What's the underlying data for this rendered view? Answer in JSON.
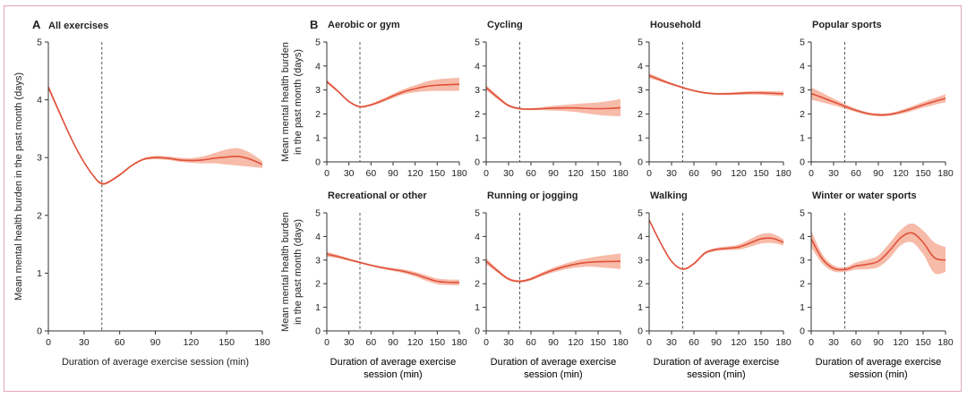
{
  "colors": {
    "band": "#f4a48c",
    "curve": "#e0503a",
    "frame": "#e3a6b8",
    "reference_line": "#555555"
  },
  "chart_data": [
    {
      "id": "all",
      "panel_label": "A",
      "type": "line",
      "title": "All exercises",
      "xlabel": "Duration of average exercise session (min)",
      "ylabel": "Mean mental health burden in the past month (days)",
      "xlim": [
        0,
        180
      ],
      "ylim": [
        0,
        5
      ],
      "xticks": [
        0,
        30,
        60,
        90,
        120,
        150,
        180
      ],
      "yticks": [
        0,
        1,
        2,
        3,
        4,
        5
      ],
      "reference_x": 45,
      "x": [
        0,
        10,
        20,
        30,
        40,
        45,
        50,
        60,
        70,
        80,
        90,
        100,
        110,
        120,
        130,
        140,
        150,
        160,
        170,
        180
      ],
      "y": [
        4.22,
        3.75,
        3.3,
        2.92,
        2.63,
        2.55,
        2.57,
        2.7,
        2.86,
        2.97,
        3.0,
        2.99,
        2.96,
        2.95,
        2.96,
        2.99,
        3.01,
        3.02,
        2.97,
        2.88
      ],
      "lower": [
        4.18,
        3.72,
        3.28,
        2.9,
        2.61,
        2.53,
        2.55,
        2.68,
        2.84,
        2.95,
        2.97,
        2.96,
        2.93,
        2.91,
        2.9,
        2.9,
        2.88,
        2.86,
        2.84,
        2.82
      ],
      "upper": [
        4.26,
        3.78,
        3.32,
        2.94,
        2.65,
        2.57,
        2.59,
        2.72,
        2.88,
        2.99,
        3.03,
        3.02,
        3.0,
        2.99,
        3.02,
        3.08,
        3.14,
        3.16,
        3.08,
        2.94
      ]
    },
    {
      "id": "aerobic",
      "panel_label": "B",
      "type": "line",
      "title": "Aerobic or gym",
      "xlim": [
        0,
        180
      ],
      "ylim": [
        0,
        5
      ],
      "xticks": [
        0,
        30,
        60,
        90,
        120,
        150,
        180
      ],
      "yticks": [
        0,
        1,
        2,
        3,
        4,
        5
      ],
      "reference_x": 45,
      "x": [
        0,
        15,
        30,
        45,
        60,
        75,
        90,
        105,
        120,
        135,
        150,
        165,
        180
      ],
      "y": [
        3.35,
        2.95,
        2.52,
        2.3,
        2.38,
        2.55,
        2.75,
        2.93,
        3.05,
        3.15,
        3.2,
        3.22,
        3.24
      ],
      "lower": [
        3.28,
        2.9,
        2.48,
        2.26,
        2.33,
        2.48,
        2.66,
        2.82,
        2.9,
        2.95,
        2.96,
        2.96,
        2.97
      ],
      "upper": [
        3.42,
        3.0,
        2.56,
        2.34,
        2.43,
        2.62,
        2.84,
        3.04,
        3.2,
        3.35,
        3.44,
        3.48,
        3.51
      ]
    },
    {
      "id": "cycling",
      "type": "line",
      "title": "Cycling",
      "xlim": [
        0,
        180
      ],
      "ylim": [
        0,
        5
      ],
      "xticks": [
        0,
        30,
        60,
        90,
        120,
        150,
        180
      ],
      "yticks": [
        0,
        1,
        2,
        3,
        4,
        5
      ],
      "reference_x": 45,
      "x": [
        0,
        15,
        30,
        45,
        60,
        75,
        90,
        105,
        120,
        135,
        150,
        165,
        180
      ],
      "y": [
        3.1,
        2.7,
        2.35,
        2.22,
        2.2,
        2.22,
        2.24,
        2.25,
        2.25,
        2.23,
        2.22,
        2.23,
        2.26
      ],
      "lower": [
        3.0,
        2.62,
        2.3,
        2.18,
        2.16,
        2.16,
        2.14,
        2.12,
        2.08,
        2.02,
        1.96,
        1.92,
        1.9
      ],
      "upper": [
        3.2,
        2.78,
        2.4,
        2.26,
        2.24,
        2.28,
        2.34,
        2.38,
        2.42,
        2.45,
        2.48,
        2.54,
        2.62
      ]
    },
    {
      "id": "household",
      "type": "line",
      "title": "Household",
      "xlim": [
        0,
        180
      ],
      "ylim": [
        0,
        5
      ],
      "xticks": [
        0,
        30,
        60,
        90,
        120,
        150,
        180
      ],
      "yticks": [
        0,
        1,
        2,
        3,
        4,
        5
      ],
      "reference_x": 45,
      "x": [
        0,
        15,
        30,
        45,
        60,
        75,
        90,
        105,
        120,
        135,
        150,
        165,
        180
      ],
      "y": [
        3.6,
        3.42,
        3.25,
        3.1,
        2.97,
        2.88,
        2.84,
        2.84,
        2.86,
        2.88,
        2.88,
        2.86,
        2.84
      ],
      "lower": [
        3.5,
        3.35,
        3.2,
        3.06,
        2.93,
        2.84,
        2.8,
        2.79,
        2.8,
        2.81,
        2.8,
        2.77,
        2.74
      ],
      "upper": [
        3.7,
        3.5,
        3.3,
        3.14,
        3.01,
        2.92,
        2.88,
        2.89,
        2.92,
        2.95,
        2.96,
        2.95,
        2.94
      ]
    },
    {
      "id": "popular",
      "type": "line",
      "title": "Popular sports",
      "xlim": [
        0,
        180
      ],
      "ylim": [
        0,
        5
      ],
      "xticks": [
        0,
        30,
        60,
        90,
        120,
        150,
        180
      ],
      "yticks": [
        0,
        1,
        2,
        3,
        4,
        5
      ],
      "reference_x": 45,
      "x": [
        0,
        15,
        30,
        45,
        60,
        75,
        90,
        105,
        120,
        135,
        150,
        165,
        180
      ],
      "y": [
        2.85,
        2.68,
        2.5,
        2.32,
        2.15,
        2.02,
        1.96,
        1.98,
        2.08,
        2.22,
        2.38,
        2.52,
        2.65
      ],
      "lower": [
        2.6,
        2.48,
        2.36,
        2.22,
        2.08,
        1.96,
        1.9,
        1.92,
        2.0,
        2.12,
        2.26,
        2.38,
        2.48
      ],
      "upper": [
        3.1,
        2.88,
        2.64,
        2.42,
        2.22,
        2.08,
        2.02,
        2.04,
        2.16,
        2.32,
        2.5,
        2.66,
        2.82
      ]
    },
    {
      "id": "recreational",
      "type": "line",
      "title": "Recreational or other",
      "xlim": [
        0,
        180
      ],
      "ylim": [
        0,
        5
      ],
      "xticks": [
        0,
        30,
        60,
        90,
        120,
        150,
        180
      ],
      "yticks": [
        0,
        1,
        2,
        3,
        4,
        5
      ],
      "reference_x": 45,
      "x": [
        0,
        15,
        30,
        45,
        60,
        75,
        90,
        105,
        120,
        135,
        150,
        165,
        180
      ],
      "y": [
        3.25,
        3.15,
        3.02,
        2.9,
        2.78,
        2.68,
        2.6,
        2.52,
        2.4,
        2.24,
        2.1,
        2.06,
        2.05
      ],
      "lower": [
        3.15,
        3.08,
        2.97,
        2.86,
        2.74,
        2.63,
        2.54,
        2.44,
        2.3,
        2.12,
        1.98,
        1.94,
        1.93
      ],
      "upper": [
        3.35,
        3.22,
        3.07,
        2.94,
        2.82,
        2.73,
        2.66,
        2.6,
        2.5,
        2.36,
        2.22,
        2.18,
        2.17
      ]
    },
    {
      "id": "running",
      "type": "line",
      "title": "Running or jogging",
      "xlim": [
        0,
        180
      ],
      "ylim": [
        0,
        5
      ],
      "xticks": [
        0,
        30,
        60,
        90,
        120,
        150,
        180
      ],
      "yticks": [
        0,
        1,
        2,
        3,
        4,
        5
      ],
      "reference_x": 45,
      "x": [
        0,
        15,
        30,
        45,
        60,
        75,
        90,
        105,
        120,
        135,
        150,
        165,
        180
      ],
      "y": [
        2.95,
        2.55,
        2.2,
        2.1,
        2.2,
        2.4,
        2.58,
        2.72,
        2.83,
        2.9,
        2.93,
        2.94,
        2.95
      ],
      "lower": [
        2.82,
        2.47,
        2.14,
        2.05,
        2.14,
        2.32,
        2.48,
        2.6,
        2.68,
        2.72,
        2.7,
        2.66,
        2.62
      ],
      "upper": [
        3.08,
        2.63,
        2.26,
        2.15,
        2.26,
        2.48,
        2.68,
        2.84,
        2.98,
        3.08,
        3.16,
        3.22,
        3.28
      ]
    },
    {
      "id": "walking",
      "type": "line",
      "title": "Walking",
      "xlim": [
        0,
        180
      ],
      "ylim": [
        0,
        5
      ],
      "xticks": [
        0,
        30,
        60,
        90,
        120,
        150,
        180
      ],
      "yticks": [
        0,
        1,
        2,
        3,
        4,
        5
      ],
      "reference_x": 45,
      "x": [
        0,
        15,
        30,
        45,
        60,
        75,
        90,
        105,
        120,
        135,
        150,
        165,
        180
      ],
      "y": [
        4.7,
        3.75,
        2.95,
        2.62,
        2.85,
        3.3,
        3.45,
        3.5,
        3.55,
        3.72,
        3.9,
        3.92,
        3.75
      ],
      "lower": [
        4.66,
        3.72,
        2.92,
        2.58,
        2.8,
        3.24,
        3.38,
        3.42,
        3.44,
        3.56,
        3.7,
        3.72,
        3.62
      ],
      "upper": [
        4.74,
        3.78,
        2.98,
        2.66,
        2.9,
        3.36,
        3.52,
        3.58,
        3.66,
        3.88,
        4.1,
        4.12,
        3.88
      ]
    },
    {
      "id": "winter",
      "type": "line",
      "title": "Winter or water sports",
      "xlim": [
        0,
        180
      ],
      "ylim": [
        0,
        5
      ],
      "xticks": [
        0,
        30,
        60,
        90,
        120,
        150,
        180
      ],
      "yticks": [
        0,
        1,
        2,
        3,
        4,
        5
      ],
      "reference_x": 45,
      "x": [
        0,
        15,
        30,
        45,
        60,
        75,
        90,
        105,
        120,
        135,
        150,
        165,
        180
      ],
      "y": [
        3.9,
        3.05,
        2.65,
        2.6,
        2.75,
        2.82,
        2.95,
        3.4,
        3.95,
        4.15,
        3.75,
        3.1,
        3.0
      ],
      "lower": [
        3.55,
        2.85,
        2.52,
        2.5,
        2.6,
        2.62,
        2.7,
        3.08,
        3.62,
        3.75,
        3.25,
        2.45,
        2.5
      ],
      "upper": [
        4.25,
        3.25,
        2.78,
        2.7,
        2.9,
        3.02,
        3.2,
        3.72,
        4.28,
        4.55,
        4.25,
        3.75,
        3.55
      ]
    }
  ],
  "shared_labels": {
    "small_xlabel_line1": "Duration of average exercise",
    "small_xlabel_line2": "session (min)",
    "small_ylabel_line1": "Mean mental health burden",
    "small_ylabel_line2": "in the past month (days)"
  }
}
